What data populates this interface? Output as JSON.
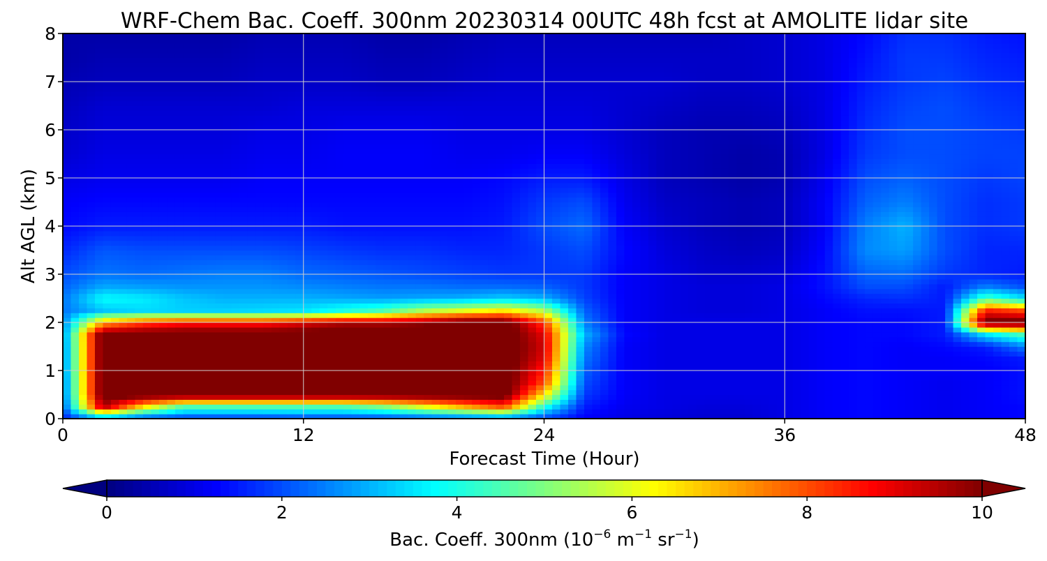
{
  "chart_data": {
    "type": "heatmap",
    "title": "WRF-Chem Bac. Coeff. 300nm  20230314 00UTC 48h fcst at AMOLITE lidar site",
    "xlabel": "Forecast Time (Hour)",
    "ylabel": "Alt AGL (km)",
    "xlim": [
      0,
      48
    ],
    "ylim": [
      0,
      8
    ],
    "xticks": [
      0,
      12,
      24,
      36,
      48
    ],
    "yticks": [
      0,
      1,
      2,
      3,
      4,
      5,
      6,
      7,
      8
    ],
    "grid": true,
    "colormap": "jet",
    "colorbar": {
      "orientation": "horizontal",
      "position": "bottom",
      "label_main": "Bac. Coeff. 300nm  (10",
      "label_exp1": "−6",
      "label_mid1": " m",
      "label_exp2": "−1",
      "label_mid2": " sr",
      "label_exp3": "−1",
      "label_end": ")",
      "min": 0,
      "max": 10,
      "ticks": [
        0,
        2,
        4,
        6,
        8,
        10
      ],
      "extend": "both"
    },
    "x": [
      0,
      2,
      4,
      6,
      8,
      10,
      12,
      14,
      16,
      18,
      20,
      22,
      24,
      26,
      28,
      30,
      32,
      34,
      36,
      38,
      40,
      42,
      44,
      46,
      48
    ],
    "y": [
      0,
      0.25,
      0.5,
      0.75,
      1,
      1.25,
      1.5,
      1.75,
      2,
      2.25,
      2.5,
      2.75,
      3,
      3.5,
      4,
      4.5,
      5,
      5.5,
      6,
      6.5,
      7,
      7.5,
      8
    ],
    "values": [
      [
        1.5,
        2.5,
        1.8,
        1.7,
        1.7,
        1.7,
        1.8,
        1.8,
        1.8,
        1.9,
        2.0,
        2.2,
        1.8,
        1.2,
        1.0,
        0.9,
        0.8,
        0.8,
        1.0,
        1.2,
        1.3,
        1.2,
        1.1,
        1.2,
        1.3
      ],
      [
        2.0,
        9.5,
        6.5,
        4.5,
        4.5,
        4.5,
        4.5,
        4.5,
        5.0,
        6.0,
        7.0,
        8.0,
        4.0,
        1.5,
        1.1,
        1.0,
        0.9,
        0.9,
        1.0,
        1.2,
        1.3,
        1.2,
        1.1,
        1.2,
        1.3
      ],
      [
        2.3,
        10.5,
        10.5,
        10.5,
        10.5,
        10.5,
        10.5,
        10.5,
        10.5,
        10.5,
        10.5,
        10.5,
        6.5,
        1.8,
        1.2,
        1.0,
        1.0,
        1.0,
        1.0,
        1.2,
        1.3,
        1.2,
        1.1,
        1.2,
        1.4
      ],
      [
        2.3,
        10.5,
        10.5,
        10.5,
        10.5,
        10.5,
        10.5,
        10.5,
        10.5,
        10.5,
        10.5,
        10.5,
        8.0,
        2.0,
        1.2,
        1.0,
        1.0,
        1.0,
        1.0,
        1.2,
        1.3,
        1.2,
        1.1,
        1.2,
        1.4
      ],
      [
        2.4,
        10.5,
        10.5,
        10.5,
        10.5,
        10.5,
        10.5,
        10.5,
        10.5,
        10.5,
        10.5,
        10.5,
        8.5,
        2.2,
        1.2,
        1.0,
        1.0,
        1.0,
        1.0,
        1.2,
        1.3,
        1.2,
        1.2,
        1.2,
        1.4
      ],
      [
        2.4,
        10.5,
        10.5,
        10.5,
        10.5,
        10.5,
        10.5,
        10.5,
        10.5,
        10.5,
        10.5,
        10.5,
        9.0,
        2.4,
        1.2,
        1.0,
        1.0,
        1.0,
        1.0,
        1.2,
        1.3,
        1.2,
        1.2,
        1.3,
        1.5
      ],
      [
        2.4,
        10.5,
        10.5,
        10.5,
        10.5,
        10.5,
        10.5,
        10.5,
        10.5,
        10.5,
        10.5,
        10.5,
        9.2,
        2.6,
        1.2,
        1.0,
        1.0,
        1.0,
        1.0,
        1.2,
        1.3,
        1.2,
        1.3,
        1.5,
        2.5
      ],
      [
        2.5,
        10.5,
        10.5,
        10.5,
        10.5,
        10.5,
        10.5,
        10.5,
        10.5,
        10.5,
        10.5,
        10.5,
        9.0,
        3.0,
        1.3,
        1.0,
        1.0,
        1.0,
        1.0,
        1.2,
        1.3,
        1.3,
        1.5,
        3.5,
        4.5
      ],
      [
        2.5,
        7.0,
        8.0,
        8.5,
        8.5,
        8.5,
        9.0,
        9.5,
        9.5,
        9.8,
        10.5,
        10.5,
        8.2,
        2.5,
        1.2,
        1.0,
        1.0,
        1.0,
        1.0,
        1.2,
        1.3,
        1.3,
        1.5,
        10.5,
        10.5
      ],
      [
        2.4,
        3.2,
        3.4,
        3.3,
        3.3,
        3.4,
        3.5,
        4.0,
        4.5,
        5.5,
        6.0,
        6.5,
        5.5,
        2.2,
        1.2,
        1.0,
        0.9,
        0.9,
        1.0,
        1.2,
        1.4,
        1.4,
        1.5,
        8.5,
        8.0
      ],
      [
        2.4,
        3.8,
        3.6,
        3.2,
        3.0,
        3.0,
        3.0,
        2.9,
        2.8,
        2.9,
        3.0,
        3.3,
        3.0,
        1.9,
        1.2,
        1.0,
        0.9,
        0.9,
        1.0,
        1.3,
        1.6,
        1.7,
        1.5,
        4.5,
        3.5
      ],
      [
        2.2,
        2.9,
        2.8,
        2.7,
        2.7,
        2.7,
        2.6,
        2.5,
        2.4,
        2.4,
        2.3,
        2.3,
        2.2,
        1.8,
        1.2,
        1.0,
        0.9,
        0.9,
        1.0,
        1.4,
        2.0,
        2.0,
        1.5,
        2.5,
        2.0
      ],
      [
        2.0,
        2.4,
        2.3,
        2.4,
        2.5,
        2.5,
        2.3,
        2.2,
        2.1,
        2.0,
        1.9,
        1.8,
        1.8,
        1.8,
        1.2,
        1.0,
        0.8,
        0.8,
        0.9,
        1.4,
        2.2,
        2.3,
        1.8,
        1.6,
        1.5
      ],
      [
        1.6,
        2.1,
        2.0,
        2.0,
        2.0,
        2.0,
        1.9,
        1.8,
        1.7,
        1.7,
        1.6,
        1.6,
        1.8,
        2.0,
        1.3,
        0.9,
        0.7,
        0.6,
        0.7,
        1.3,
        2.6,
        2.8,
        2.0,
        1.6,
        1.6
      ],
      [
        1.3,
        1.5,
        1.5,
        1.5,
        1.5,
        1.5,
        1.5,
        1.4,
        1.4,
        1.4,
        1.4,
        1.5,
        2.0,
        2.3,
        1.2,
        0.8,
        0.6,
        0.5,
        0.6,
        1.2,
        2.5,
        3.0,
        2.0,
        1.7,
        1.8
      ],
      [
        1.2,
        1.3,
        1.3,
        1.3,
        1.3,
        1.3,
        1.3,
        1.3,
        1.3,
        1.3,
        1.3,
        1.4,
        1.8,
        2.0,
        1.1,
        0.7,
        0.6,
        0.5,
        0.6,
        1.2,
        2.2,
        2.5,
        2.0,
        1.7,
        1.8
      ],
      [
        1.0,
        1.1,
        1.1,
        1.1,
        1.1,
        1.2,
        1.2,
        1.2,
        1.2,
        1.2,
        1.2,
        1.3,
        1.5,
        1.5,
        1.0,
        0.6,
        0.5,
        0.4,
        0.5,
        1.1,
        2.0,
        2.2,
        2.0,
        1.8,
        1.9
      ],
      [
        0.8,
        1.0,
        1.0,
        1.0,
        1.0,
        1.1,
        1.1,
        1.2,
        1.2,
        1.2,
        1.1,
        1.1,
        1.2,
        1.2,
        0.9,
        0.6,
        0.5,
        0.4,
        0.5,
        1.0,
        1.8,
        2.0,
        2.0,
        1.9,
        1.9
      ],
      [
        0.7,
        0.9,
        0.9,
        0.9,
        0.9,
        1.0,
        1.0,
        1.1,
        1.1,
        1.1,
        1.0,
        1.0,
        1.0,
        1.0,
        0.8,
        0.6,
        0.5,
        0.5,
        0.6,
        1.0,
        1.7,
        2.0,
        2.0,
        1.9,
        1.8
      ],
      [
        0.6,
        0.8,
        0.8,
        0.8,
        0.8,
        0.8,
        0.9,
        0.9,
        0.9,
        0.9,
        0.9,
        0.9,
        0.9,
        0.9,
        0.8,
        0.7,
        0.6,
        0.6,
        0.7,
        1.0,
        1.6,
        1.9,
        2.0,
        1.8,
        1.7
      ],
      [
        0.5,
        0.6,
        0.6,
        0.6,
        0.6,
        0.7,
        0.7,
        0.7,
        0.6,
        0.6,
        0.7,
        0.8,
        0.8,
        0.8,
        0.8,
        0.8,
        0.7,
        0.7,
        0.8,
        1.0,
        1.5,
        1.8,
        1.9,
        1.7,
        1.6
      ],
      [
        0.4,
        0.5,
        0.5,
        0.5,
        0.5,
        0.6,
        0.6,
        0.6,
        0.5,
        0.5,
        0.6,
        0.7,
        0.7,
        0.7,
        0.7,
        0.7,
        0.7,
        0.7,
        0.8,
        1.0,
        1.4,
        1.8,
        1.8,
        1.6,
        1.5
      ],
      [
        0.4,
        0.4,
        0.4,
        0.4,
        0.4,
        0.5,
        0.5,
        0.5,
        0.4,
        0.4,
        0.5,
        0.6,
        0.6,
        0.6,
        0.6,
        0.6,
        0.6,
        0.7,
        0.8,
        1.0,
        1.3,
        1.7,
        1.7,
        1.5,
        1.4
      ]
    ]
  }
}
